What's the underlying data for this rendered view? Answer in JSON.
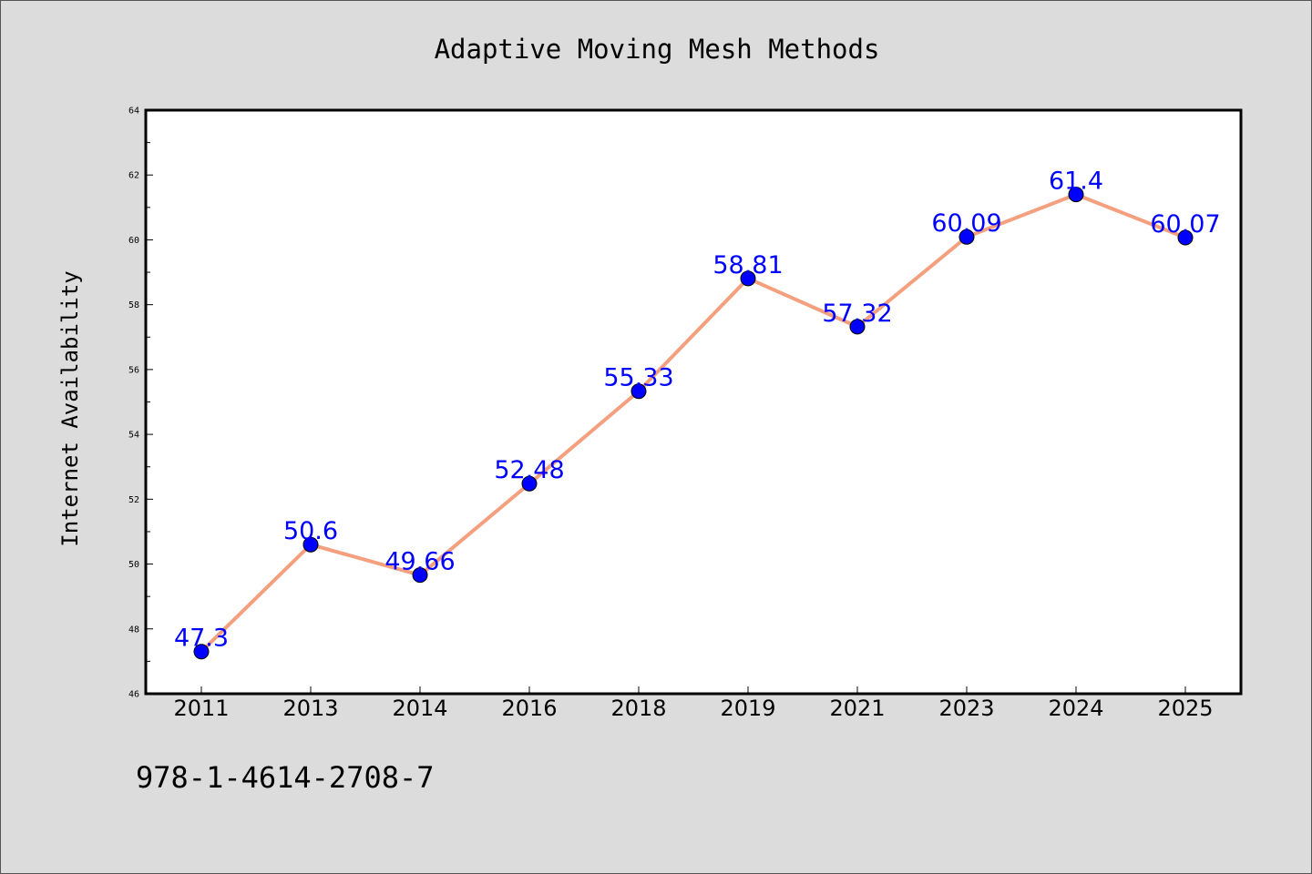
{
  "chart_data": {
    "type": "line",
    "title": "Adaptive Moving Mesh Methods",
    "xlabel": "",
    "ylabel": "Internet Availability",
    "categories": [
      "2011",
      "2013",
      "2014",
      "2016",
      "2018",
      "2019",
      "2021",
      "2023",
      "2024",
      "2025"
    ],
    "series": [
      {
        "values": [
          47.3,
          50.6,
          49.66,
          52.48,
          55.33,
          58.81,
          57.32,
          60.09,
          61.4,
          60.07
        ]
      }
    ],
    "data_labels": [
      "47.3",
      "50.6",
      "49.66",
      "52.48",
      "55.33",
      "58.81",
      "57.32",
      "60.09",
      "61.4",
      "60.07"
    ],
    "ylim": [
      46,
      64
    ],
    "yticks": [
      "46",
      "48",
      "50",
      "52",
      "54",
      "56",
      "58",
      "60",
      "62",
      "64"
    ],
    "grid": false,
    "legend": "none",
    "colors": {
      "line": "#f4a07e",
      "marker": "#0000ff",
      "data_label": "#0000ff",
      "background": "#dcdcdc",
      "plot_area": "#ffffff"
    }
  },
  "footer": {
    "isbn": "978-1-4614-2708-7"
  }
}
